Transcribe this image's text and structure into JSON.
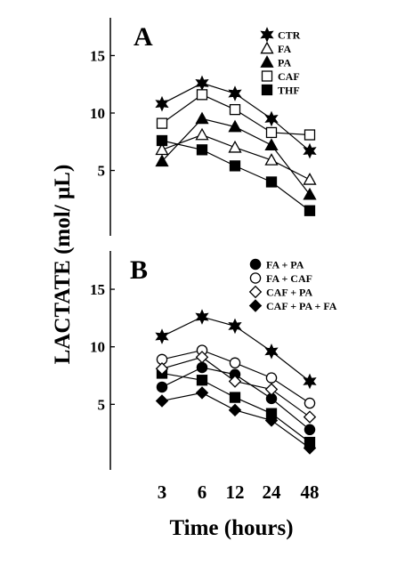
{
  "chart_data": [
    {
      "type": "line",
      "panel_label": "A",
      "ylabel": "LACTATE (mol/ µL)",
      "xlabel": "Time (hours)",
      "categories": [
        "3",
        "6",
        "12",
        "24",
        "48"
      ],
      "yticks": [
        5,
        10,
        15
      ],
      "ylim": [
        0,
        18.5
      ],
      "legend_position": "top-right",
      "series": [
        {
          "name": "CTR",
          "marker": "star-filled",
          "values": [
            10.8,
            12.6,
            11.7,
            9.5,
            6.7
          ]
        },
        {
          "name": "FA",
          "marker": "triangle-open",
          "values": [
            6.8,
            8.1,
            7.0,
            5.9,
            4.2
          ]
        },
        {
          "name": "PA",
          "marker": "triangle-filled",
          "values": [
            5.8,
            9.5,
            8.8,
            7.2,
            2.9
          ]
        },
        {
          "name": "CAF",
          "marker": "square-open",
          "values": [
            9.1,
            11.6,
            10.3,
            8.3,
            8.1
          ]
        },
        {
          "name": "THF",
          "marker": "square-filled",
          "values": [
            7.6,
            6.8,
            5.4,
            4.0,
            1.5
          ]
        }
      ]
    },
    {
      "type": "line",
      "panel_label": "B",
      "ylabel": "LACTATE (mol/ µL)",
      "xlabel": "Time (hours)",
      "categories": [
        "3",
        "6",
        "12",
        "24",
        "48"
      ],
      "yticks": [
        5,
        10,
        15
      ],
      "ylim": [
        0,
        18.5
      ],
      "legend_position": "top-right",
      "series": [
        {
          "name": "",
          "marker": "star-filled",
          "values": [
            10.9,
            12.6,
            11.8,
            9.6,
            7.0
          ]
        },
        {
          "name": "",
          "marker": "square-filled",
          "values": [
            7.7,
            7.1,
            5.6,
            4.2,
            1.7
          ]
        },
        {
          "name": "FA + PA",
          "marker": "circle-filled",
          "values": [
            6.5,
            8.2,
            7.6,
            5.5,
            2.8
          ]
        },
        {
          "name": "FA + CAF",
          "marker": "circle-open",
          "values": [
            8.9,
            9.7,
            8.6,
            7.3,
            5.1
          ]
        },
        {
          "name": "CAF + PA",
          "marker": "diamond-open",
          "values": [
            8.1,
            9.1,
            7.0,
            6.3,
            3.9
          ]
        },
        {
          "name": "CAF + PA + FA",
          "marker": "diamond-filled",
          "values": [
            5.3,
            6.0,
            4.5,
            3.6,
            1.2
          ]
        }
      ]
    }
  ],
  "labels": {
    "ylabel": "LACTATE (mol/ µL)",
    "xlabel": "Time (hours)",
    "panel_a": "A",
    "panel_b": "B"
  },
  "colors": {
    "ink": "#000000",
    "background": "#ffffff"
  }
}
